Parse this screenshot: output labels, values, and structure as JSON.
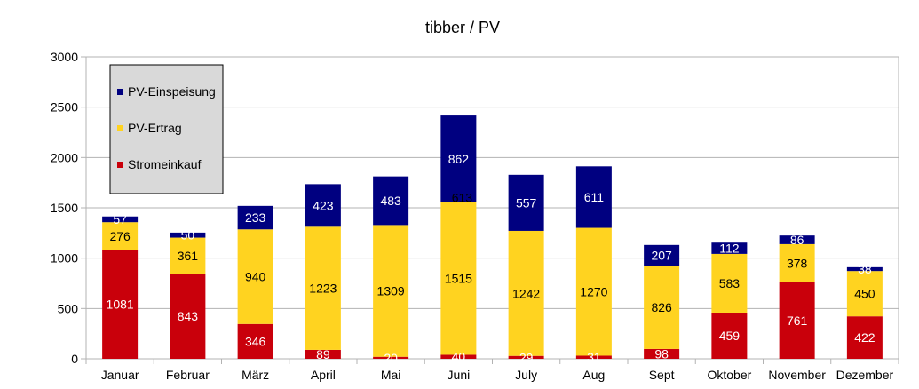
{
  "chart_data": {
    "type": "bar",
    "stacked": true,
    "title": "tibber / PV",
    "xlabel": "",
    "ylabel": "",
    "ylim": [
      0,
      3000
    ],
    "yticks": [
      0,
      500,
      1000,
      1500,
      2000,
      2500,
      3000
    ],
    "grid": true,
    "legend_position": "top-left",
    "categories": [
      "Januar",
      "Februar",
      "März",
      "April",
      "Mai",
      "Juni",
      "July",
      "Aug",
      "Sept",
      "Oktober",
      "November",
      "Dezember"
    ],
    "series": [
      {
        "name": "Stromeinkauf",
        "color": "#c9000b",
        "label_color": "#ffffff",
        "values": [
          1081,
          843,
          346,
          89,
          20,
          40,
          29,
          31,
          98,
          459,
          761,
          422
        ]
      },
      {
        "name": "PV-Ertrag",
        "color": "#ffd320",
        "label_color": "#000000",
        "values": [
          276,
          361,
          940,
          1223,
          1309,
          1515,
          1242,
          1270,
          826,
          583,
          378,
          450
        ]
      },
      {
        "name": "PV-Einspeisung",
        "color": "#000080",
        "label_color": "#ffffff",
        "values": [
          57,
          50,
          233,
          423,
          483,
          862,
          557,
          611,
          207,
          112,
          86,
          38
        ]
      }
    ],
    "annotations": [
      {
        "category": "Juni",
        "text": "613",
        "at_value": 1600,
        "color": "#000000"
      }
    ],
    "legend_order": [
      "PV-Einspeisung",
      "PV-Ertrag",
      "Stromeinkauf"
    ]
  }
}
